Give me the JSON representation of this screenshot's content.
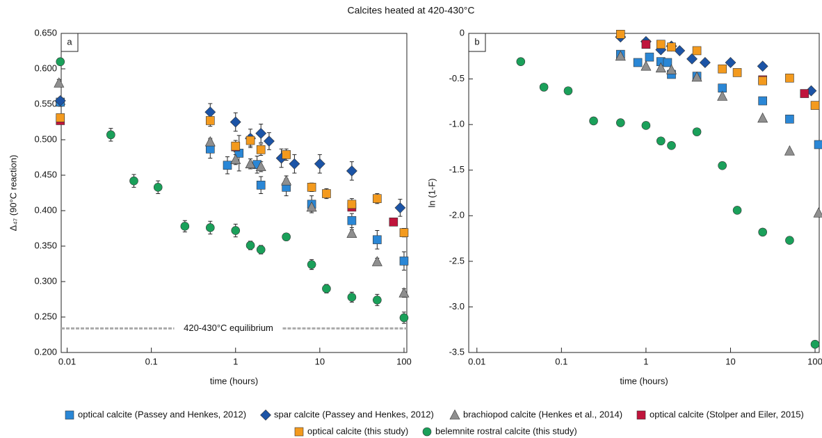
{
  "title": "Calcites heated at 420-430°C",
  "chart_data": [
    {
      "type": "scatter",
      "panel": "a",
      "xlabel": "time (hours)",
      "ylabel": "Δ₄₇ (90°C reaction)",
      "xscale": "log",
      "xlim": [
        0.0085,
        108
      ],
      "xticks": [
        0.01,
        0.1,
        1,
        10,
        100
      ],
      "ylim": [
        0.2,
        0.65
      ],
      "yticks": [
        {
          "value": 0.2,
          "label": "0.200"
        },
        {
          "value": 0.25,
          "label": "0.250"
        },
        {
          "value": 0.3,
          "label": "0.300"
        },
        {
          "value": 0.35,
          "label": "0.350"
        },
        {
          "value": 0.4,
          "label": "0.400"
        },
        {
          "value": 0.45,
          "label": "0.450"
        },
        {
          "value": 0.5,
          "label": "0.500"
        },
        {
          "value": 0.55,
          "label": "0.550"
        },
        {
          "value": 0.6,
          "label": "0.600"
        },
        {
          "value": 0.65,
          "label": "0.650"
        }
      ],
      "reference": {
        "value": 0.234,
        "label": "420-430°C equilibrium"
      },
      "series": [
        {
          "name": "optical calcite (Passey and Henkes, 2012)",
          "color": "#2a87d6",
          "marker": "square",
          "x": [
            0.0083,
            0.5,
            0.8,
            1.1,
            1.8,
            2,
            4,
            8,
            24,
            48,
            100
          ],
          "values": [
            0.553,
            0.487,
            0.464,
            0.481,
            0.465,
            0.436,
            0.433,
            0.409,
            0.386,
            0.359,
            0.329
          ],
          "errors": [
            0.006,
            0.013,
            0.012,
            0.025,
            0.012,
            0.012,
            0.012,
            0.012,
            0.01,
            0.013,
            0.013
          ]
        },
        {
          "name": "spar calcite (Passey and Henkes, 2012)",
          "color": "#1c54a6",
          "marker": "diamond",
          "x": [
            0.0083,
            0.5,
            1,
            1.5,
            2,
            2.5,
            3.5,
            5,
            10,
            24,
            90
          ],
          "values": [
            0.555,
            0.539,
            0.525,
            0.502,
            0.509,
            0.498,
            0.474,
            0.466,
            0.466,
            0.456,
            0.404
          ],
          "errors": [
            0.005,
            0.012,
            0.013,
            0.013,
            0.013,
            0.012,
            0.013,
            0.013,
            0.013,
            0.013,
            0.012
          ]
        },
        {
          "name": "brachiopod calcite (Henkes et al., 2014)",
          "color": "#8f8f8f",
          "marker": "triangle",
          "x": [
            0.008,
            0.5,
            1,
            1.5,
            2,
            4,
            8,
            24,
            48,
            100
          ],
          "values": [
            0.58,
            0.497,
            0.472,
            0.466,
            0.462,
            0.442,
            0.405,
            0.368,
            0.328,
            0.284
          ],
          "errors": [
            0.005,
            0.005,
            0.007,
            0.007,
            0.007,
            0.007,
            0.006,
            0.005,
            0.005,
            0.006
          ]
        },
        {
          "name": "optical calcite (Stolper and Eiler, 2015)",
          "color": "#c0143c",
          "marker": "square",
          "x": [
            0.0083,
            1,
            24,
            75
          ],
          "values": [
            0.527,
            0.49,
            0.405,
            0.384
          ]
        },
        {
          "name": "optical calcite (this study)",
          "color": "#f39a1e",
          "marker": "square",
          "x": [
            0.0083,
            0.5,
            1,
            1.5,
            2,
            4,
            8,
            12,
            24,
            48,
            100
          ],
          "values": [
            0.531,
            0.527,
            0.491,
            0.499,
            0.486,
            0.479,
            0.433,
            0.424,
            0.409,
            0.417,
            0.369
          ],
          "errors": [
            0.005,
            0.008,
            0.008,
            0.008,
            0.008,
            0.008,
            0.006,
            0.007,
            0.008,
            0.007,
            0.006
          ]
        },
        {
          "name": "belemnite rostral calcite (this study)",
          "color": "#1aa05a",
          "marker": "circle",
          "x": [
            0.0083,
            0.033,
            0.062,
            0.12,
            0.25,
            0.5,
            1,
            1.5,
            2,
            4,
            8,
            12,
            24,
            48,
            100
          ],
          "values": [
            0.61,
            0.507,
            0.442,
            0.433,
            0.378,
            0.376,
            0.372,
            0.351,
            0.345,
            0.363,
            0.324,
            0.29,
            0.278,
            0.274,
            0.249
          ],
          "errors": [
            0.005,
            0.009,
            0.009,
            0.009,
            0.008,
            0.009,
            0.009,
            0.006,
            0.006,
            0.005,
            0.007,
            0.006,
            0.007,
            0.008,
            0.008
          ]
        }
      ]
    },
    {
      "type": "scatter",
      "panel": "b",
      "xlabel": "time (hours)",
      "ylabel": "ln (1-F)",
      "xscale": "log",
      "xlim": [
        0.008,
        112
      ],
      "xticks": [
        0.01,
        0.1,
        1,
        10,
        100
      ],
      "ylim": [
        -3.5,
        0
      ],
      "yticks": [
        0,
        -0.5,
        {
          "value": -1,
          "label": "-1.0"
        },
        -1.5,
        {
          "value": -2,
          "label": "-2.0"
        },
        -2.5,
        {
          "value": -3,
          "label": "-3.0"
        },
        -3.5
      ],
      "series": [
        {
          "color": "#2a87d6",
          "marker": "square",
          "x": [
            0.5,
            0.8,
            1.1,
            1.5,
            1.8,
            2,
            4,
            8,
            24,
            50,
            110
          ],
          "values": [
            -0.23,
            -0.32,
            -0.26,
            -0.31,
            -0.32,
            -0.45,
            -0.47,
            -0.6,
            -0.74,
            -0.94,
            -1.22
          ]
        },
        {
          "color": "#1c54a6",
          "marker": "diamond",
          "x": [
            0.5,
            1,
            1.5,
            2,
            2.5,
            3.5,
            5,
            10,
            24,
            90
          ],
          "values": [
            -0.04,
            -0.09,
            -0.18,
            -0.14,
            -0.19,
            -0.28,
            -0.32,
            -0.32,
            -0.36,
            -0.63
          ]
        },
        {
          "color": "#8f8f8f",
          "marker": "triangle",
          "x": [
            0.5,
            1,
            1.5,
            2,
            4,
            8,
            24,
            50,
            110
          ],
          "values": [
            -0.25,
            -0.36,
            -0.38,
            -0.4,
            -0.48,
            -0.69,
            -0.93,
            -1.29,
            -1.97
          ]
        },
        {
          "color": "#c0143c",
          "marker": "square",
          "x": [
            1,
            24,
            75
          ],
          "values": [
            -0.12,
            -0.51,
            -0.66
          ]
        },
        {
          "color": "#f39a1e",
          "marker": "square",
          "x": [
            0.5,
            1.5,
            2,
            4,
            8,
            12,
            24,
            50,
            100
          ],
          "values": [
            -0.01,
            -0.12,
            -0.15,
            -0.19,
            -0.39,
            -0.43,
            -0.52,
            -0.49,
            -0.79
          ]
        },
        {
          "color": "#1aa05a",
          "marker": "circle",
          "x": [
            0.033,
            0.062,
            0.12,
            0.24,
            0.5,
            1,
            1.5,
            2,
            4,
            8,
            12,
            24,
            50,
            100
          ],
          "values": [
            -0.31,
            -0.59,
            -0.63,
            -0.96,
            -0.98,
            -1.01,
            -1.18,
            -1.23,
            -1.08,
            -1.45,
            -1.94,
            -2.18,
            -2.27,
            -3.41
          ]
        }
      ]
    }
  ]
}
